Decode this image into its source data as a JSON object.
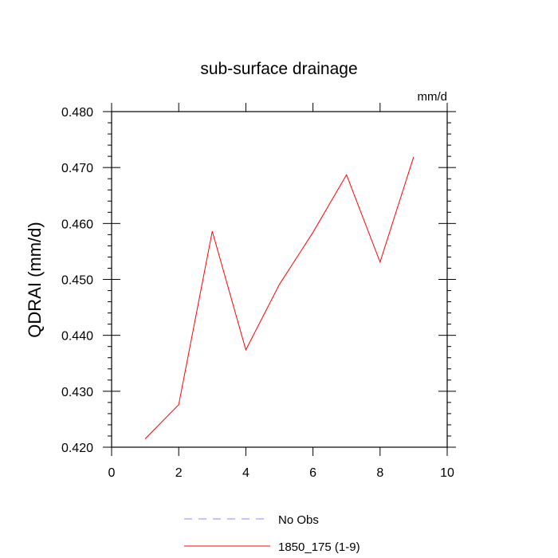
{
  "chart_data": {
    "type": "line",
    "title": "sub-surface drainage",
    "units_label": "mm/d",
    "xlabel": "",
    "ylabel": "QDRAI  (mm/d)",
    "xlim": [
      0,
      10
    ],
    "ylim": [
      0.42,
      0.48
    ],
    "x_ticks": [
      "0",
      "2",
      "4",
      "6",
      "8",
      "10"
    ],
    "y_ticks": [
      "0.420",
      "0.430",
      "0.440",
      "0.450",
      "0.460",
      "0.470",
      "0.480"
    ],
    "grid": false,
    "legend_position": "bottom",
    "series": [
      {
        "name": "1850_175 (1-9)",
        "color": "#ff0000",
        "style": "solid",
        "x": [
          1,
          2,
          3,
          4,
          5,
          6,
          7,
          8,
          9
        ],
        "y": [
          0.4215,
          0.4276,
          0.4586,
          0.4374,
          0.4491,
          0.4584,
          0.4687,
          0.4531,
          0.4719
        ]
      }
    ],
    "legend": [
      {
        "label": "No Obs",
        "color": "#8888ff",
        "style": "dashed"
      },
      {
        "label": "1850_175 (1-9)",
        "color": "#ff0000",
        "style": "solid"
      }
    ]
  }
}
